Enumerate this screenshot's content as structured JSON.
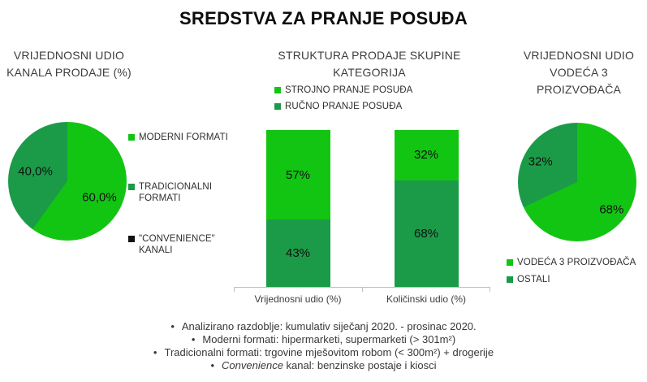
{
  "page_title": "SREDSTVA ZA PRANJE POSUĐA",
  "colors": {
    "bright_green": "#13c513",
    "dark_green": "#1b9b48",
    "black": "#111111",
    "axis_gray": "#bfbfbf"
  },
  "chart_data": [
    {
      "type": "pie",
      "title": "VRIJEDNOSNI UDIO KANALA PRODAJE (%)",
      "title_lines": [
        "VRIJEDNOSNI UDIO",
        "KANALA PRODAJE (%)"
      ],
      "legend_position": "right",
      "slices": [
        {
          "label": "MODERNI FORMATI",
          "value": 60.0,
          "display": "60,0%",
          "color": "#13c513"
        },
        {
          "label": "TRADICIONALNI FORMATI",
          "value": 40.0,
          "display": "40,0%",
          "color": "#1b9b48"
        },
        {
          "label": "\"CONVENIENCE\" KANALI",
          "value": 0,
          "display": "",
          "color": "#111111"
        }
      ]
    },
    {
      "type": "stacked-bar",
      "title": "STRUKTURA PRODAJE SKUPINE KATEGORIJA",
      "title_lines": [
        "STRUKTURA PRODAJE SKUPINE",
        "KATEGORIJA"
      ],
      "categories": [
        "Vrijednosni udio (%)",
        "Količinski udio (%)"
      ],
      "series": [
        {
          "name": "STROJNO PRANJE POSUĐA",
          "values": [
            57,
            32
          ],
          "labels": [
            "57%",
            "32%"
          ],
          "color": "#13c513"
        },
        {
          "name": "RUČNO PRANJE POSUĐA",
          "values": [
            43,
            68
          ],
          "labels": [
            "43%",
            "68%"
          ],
          "color": "#1b9b48"
        }
      ],
      "ylim": [
        0,
        100
      ],
      "value_suffix": "%",
      "legend_position": "top"
    },
    {
      "type": "pie",
      "title": "VRIJEDNOSNI UDIO VODEĆA 3 PROIZVOĐAČA",
      "title_lines": [
        "VRIJEDNOSNI UDIO",
        "VODEĆA 3",
        "PROIZVOĐAČA"
      ],
      "legend_position": "bottom",
      "slices": [
        {
          "label": "VODEĆA 3 PROIZVOĐAČA",
          "value": 68,
          "display": "68%",
          "color": "#13c513"
        },
        {
          "label": "OSTALI",
          "value": 32,
          "display": "32%",
          "color": "#1b9b48"
        }
      ]
    }
  ],
  "footnotes": [
    {
      "bullet": "•",
      "italic": "",
      "text": "Analizirano razdoblje: kumulativ siječanj 2020. - prosinac 2020."
    },
    {
      "bullet": "•",
      "italic": "",
      "text": "Moderni formati: hipermarketi, supermarketi (> 301m²)"
    },
    {
      "bullet": "•",
      "italic": "",
      "text": "Tradicionalni formati: trgovine mješovitom robom (< 300m²) + drogerije"
    },
    {
      "bullet": "•",
      "italic": "Convenience",
      "text": " kanal: benzinske postaje i kiosci"
    }
  ]
}
